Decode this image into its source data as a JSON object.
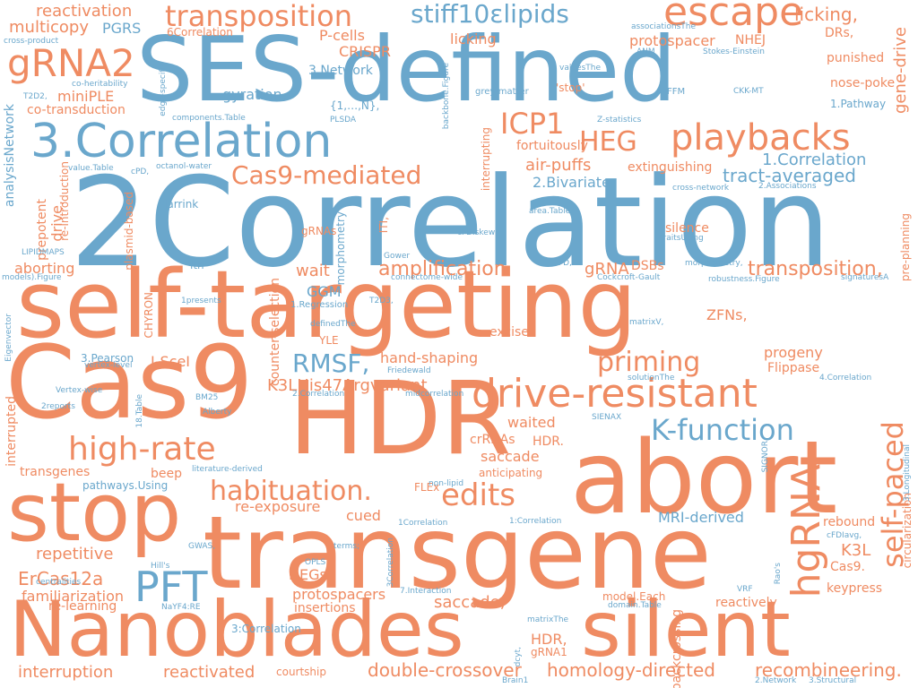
{
  "colors": {
    "orange": "#ef8b62",
    "blue": "#6aa7cc",
    "background": "#ffffff"
  },
  "words": [
    "SES-defined",
    "2Correlation",
    "self-targeting",
    "Cas9",
    "HDR",
    "abort",
    "transgene",
    "Nanoblades",
    "silent",
    "stop",
    "3.Correlation",
    "gRNA2",
    "escape",
    "transposition",
    "stiff10εlipids",
    "playbacks",
    "drive-resistant",
    "high-rate",
    "K-function",
    "edits",
    "habituation.",
    "hgRNA",
    "self-paced",
    "PFT",
    "Cas9-mediated",
    "ICP1",
    "HEG",
    "priming",
    "amplification",
    "transposition,",
    "tract-averaged",
    "1.Correlation",
    "RMSF,",
    "K3LHis47Argvariant",
    "homology-directed",
    "recombineering.",
    "double-crossover",
    "reactivated",
    "interruption",
    "multicopy",
    "PGRS",
    "reactivation",
    "licking,",
    "protospacer",
    "NHEJ",
    "DRs,",
    "punished",
    "nose-poke",
    "gene-drive",
    "CRISPR",
    "P-cells",
    "miniPLE",
    "co-transduction",
    "gyration,",
    "3.Network",
    "air-puffs",
    "2.Bivariate",
    "fortuitously",
    "extinguishing",
    "licking",
    "repetitive",
    "ErCas12a",
    "familiarization",
    "re-learning",
    "protospacers",
    "insertions",
    "HEGs",
    "saccade,",
    "HDR,",
    "gRNA1",
    "model.Each",
    "backcrossing",
    "reactively",
    "keypress",
    "Cas9.",
    "K3L",
    "rebound",
    "MRI-derived",
    "re-exposure",
    "cued",
    "crRNAs",
    "saccade",
    "anticipating",
    "waited",
    "HDR.",
    "excise",
    "progeny",
    "Flippase",
    "ZFNs,",
    "silence",
    "gRNA",
    "DSBs",
    "wait",
    "GGM",
    "aborting",
    "drive,",
    "prepotent",
    "analysisNetwork",
    "interrupted",
    "transgenes",
    "beep",
    "pathways.Using",
    "FLEx",
    "hand-shaping",
    "I-SceI",
    "3.Pearson",
    "counter-selection",
    "YLE",
    "1.Regression",
    "CHYRON",
    "plasmid-based",
    "re-introduction",
    "interrupting",
    "morphometry",
    "Marrink",
    "lth",
    "gRNAs",
    "ITI,",
    "6Correlation",
    "1.Pathway",
    "circularization",
    "pre-planning",
    "courtship",
    "cross-product",
    "co-heritability",
    "T2D2,",
    "edge-specific",
    "{1,…,N},",
    "PLSDA",
    "'stop'",
    "grey-matter",
    "Z-statistics",
    "associationsThe",
    "ANM",
    "Stokes-Einstein",
    "valuesThe",
    "FFM",
    "CKK-MT",
    "backbone.Figure",
    "components.Table",
    "octanol-water",
    "value.Table",
    "cPD,",
    "cross-network",
    "2.Associations",
    "area.Table",
    "cFDIskew,",
    "traitsUsing",
    "LIPIDMAPS",
    "Gower",
    "cFD,",
    "morphometry,",
    "models).Figure",
    "connectome-wide",
    "Cockcroft-Gault",
    "robustness.Figure",
    "signaturesA",
    "1presents",
    "T2D3,",
    "definedThe",
    "matrixV,",
    "Eigenvector",
    "vertex-level",
    "solutionThe",
    "4.Correlation",
    "Vertex-wise",
    "2.Correlation",
    "midcorrelation",
    "Friedewald",
    "BM25",
    "18.Table",
    "Alberty",
    "2reports",
    "SIENAX",
    "SIGNOR",
    "3.Longitudinal",
    "non-lipid",
    "literature-derived",
    "1Correlation",
    "1:Correlation",
    "cFDIavg,",
    "GWAS,",
    "terms;",
    "OPLS",
    "Hill's",
    "centralities",
    "3Correlation",
    "Rao's",
    "VRF",
    "NaYF4:RE",
    "7.Interaction",
    "domain.Table",
    "matrixThe",
    "dcyt,",
    "Brain1",
    "2.Network",
    "3.Structural",
    "3:Correlation",
    "▯3:Correlation"
  ]
}
